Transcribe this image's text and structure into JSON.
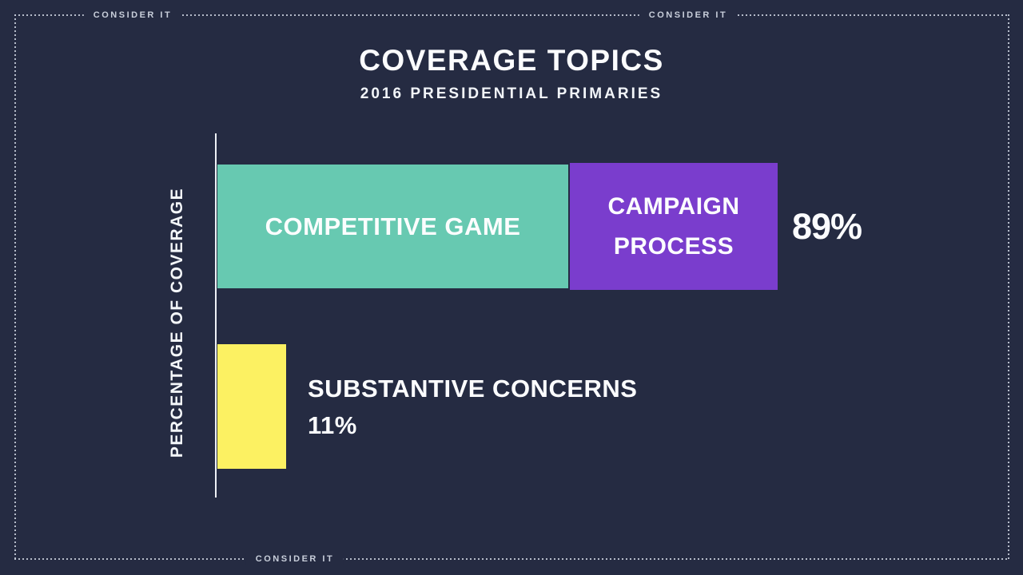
{
  "frame": {
    "brand_label": "CONSIDER IT"
  },
  "header": {
    "title": "COVERAGE TOPICS",
    "subtitle": "2016 PRESIDENTIAL PRIMARIES"
  },
  "chart_data": {
    "type": "bar",
    "orientation": "horizontal",
    "stacked": true,
    "title": "COVERAGE TOPICS",
    "subtitle": "2016 PRESIDENTIAL PRIMARIES",
    "axis_label": "PERCENTAGE OF COVERAGE",
    "xlim": [
      0,
      100
    ],
    "grid": false,
    "legend": "labels drawn inside or beside bars",
    "bars": [
      {
        "total_value": 89,
        "total_label": "89%",
        "segments": [
          {
            "label": "COMPETITIVE GAME",
            "value": 56,
            "color": "#67c9b1"
          },
          {
            "label": "CAMPAIGN PROCESS",
            "value": 33,
            "color": "#7a3dcd"
          }
        ]
      },
      {
        "total_value": 11,
        "total_label": "11%",
        "segments": [
          {
            "label": "SUBSTANTIVE CONCERNS",
            "value": 11,
            "color": "#fcf162"
          }
        ]
      }
    ],
    "colors": {
      "background": "#252b42",
      "axis": "#eef1f5",
      "text": "#fbfcfe",
      "frame_dots": "#c6ccd9"
    }
  }
}
